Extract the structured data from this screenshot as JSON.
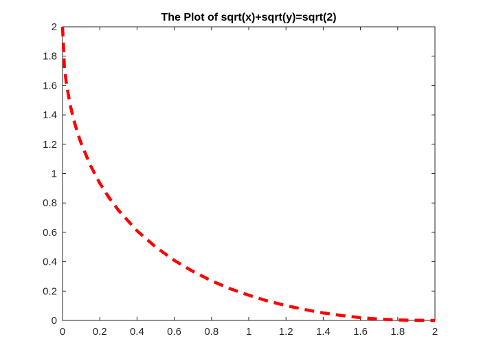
{
  "chart_data": {
    "type": "line",
    "title": "The Plot of sqrt(x)+sqrt(y)=sqrt(2)",
    "xlabel": "",
    "ylabel": "",
    "xlim": [
      0,
      2
    ],
    "ylim": [
      0,
      2
    ],
    "xticks": [
      0,
      0.2,
      0.4,
      0.6,
      0.8,
      1,
      1.2,
      1.4,
      1.6,
      1.8,
      2
    ],
    "xtick_labels": [
      "0",
      "0.2",
      "0.4",
      "0.6",
      "0.8",
      "1",
      "1.2",
      "1.4",
      "1.6",
      "1.8",
      "2"
    ],
    "yticks": [
      0,
      0.2,
      0.4,
      0.6,
      0.8,
      1,
      1.2,
      1.4,
      1.6,
      1.8,
      2
    ],
    "ytick_labels": [
      "0",
      "0.2",
      "0.4",
      "0.6",
      "0.8",
      "1",
      "1.2",
      "1.4",
      "1.6",
      "1.8",
      "2"
    ],
    "grid": false,
    "series": [
      {
        "color": "#ff0000",
        "line_style": "dashed",
        "x": [
          0,
          0.01,
          0.02,
          0.04,
          0.06,
          0.08,
          0.1,
          0.15,
          0.2,
          0.25,
          0.3,
          0.4,
          0.5,
          0.6,
          0.7,
          0.8,
          0.9,
          1.0,
          1.1,
          1.2,
          1.3,
          1.4,
          1.5,
          1.6,
          1.7,
          1.8,
          1.9,
          2.0
        ],
        "y": [
          2,
          1.727,
          1.62,
          1.474,
          1.367,
          1.28,
          1.206,
          1.055,
          0.935,
          0.836,
          0.751,
          0.611,
          0.5,
          0.409,
          0.334,
          0.27,
          0.216,
          0.172,
          0.133,
          0.101,
          0.074,
          0.051,
          0.033,
          0.019,
          0.009,
          0.003,
          0.001,
          0
        ]
      }
    ]
  }
}
